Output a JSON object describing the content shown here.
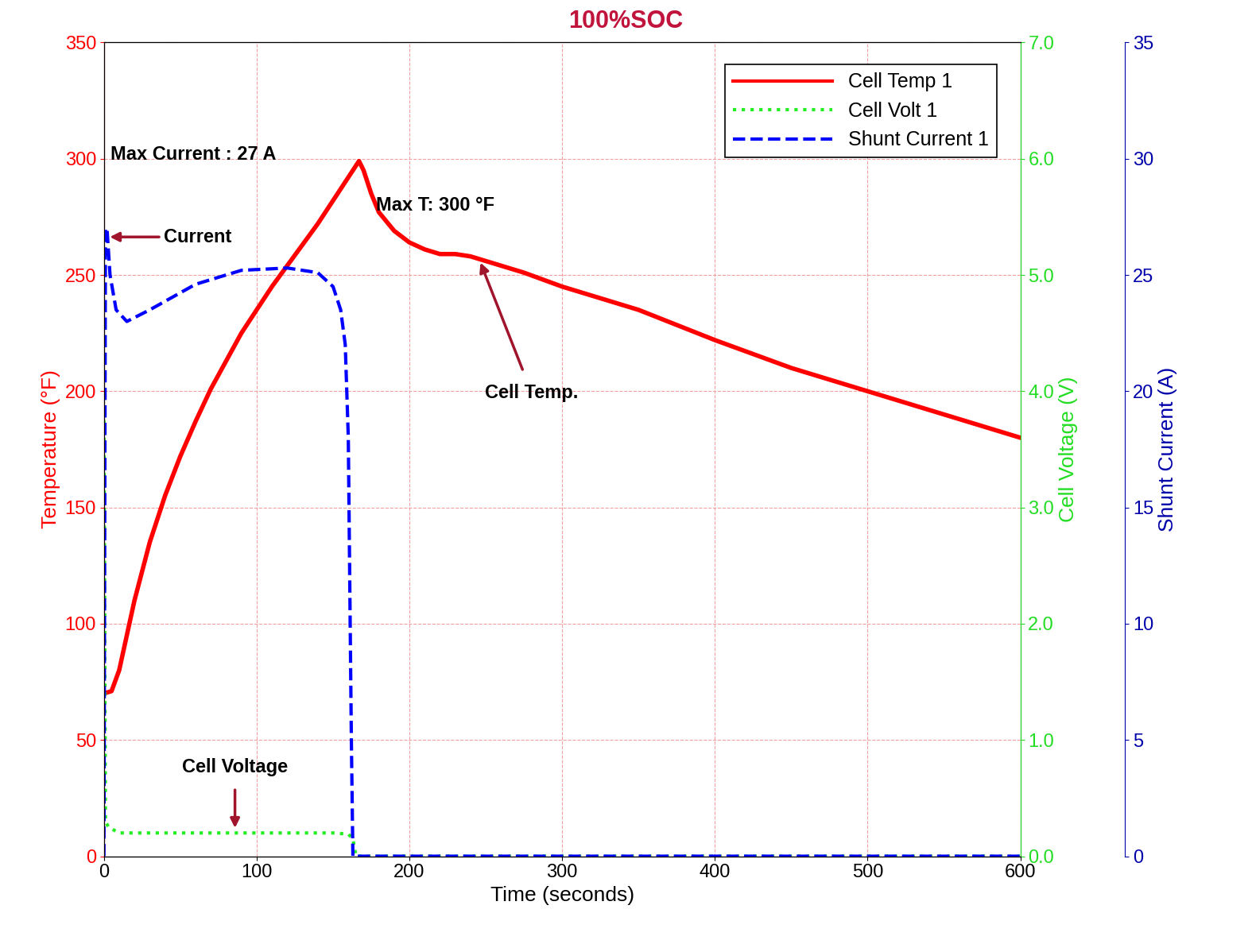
{
  "chart_data": {
    "type": "line",
    "title": "100%SOC",
    "x_label": "Time (seconds)",
    "y_label": "Temperature (°F)",
    "y2_label": "Cell Voltage (V)",
    "y3_label": "Shunt Current (A)",
    "xlim": [
      0,
      600
    ],
    "xticks": [
      0,
      100,
      200,
      300,
      400,
      500,
      600
    ],
    "ylim": [
      0,
      350
    ],
    "yticks": [
      0,
      50,
      100,
      150,
      200,
      250,
      300,
      350
    ],
    "y2lim": [
      0,
      7
    ],
    "y2ticks": [
      {
        "value": 0,
        "label": "0.0"
      },
      {
        "value": 1,
        "label": "1.0"
      },
      {
        "value": 2,
        "label": "2.0"
      },
      {
        "value": 3,
        "label": "3.0"
      },
      {
        "value": 4,
        "label": "4.0"
      },
      {
        "value": 5,
        "label": "5.0"
      },
      {
        "value": 6,
        "label": "6.0"
      },
      {
        "value": 7,
        "label": "7.0"
      }
    ],
    "y3lim": [
      0,
      35
    ],
    "y3ticks": [
      0,
      5,
      10,
      15,
      20,
      25,
      30,
      35
    ],
    "grid": true,
    "legend": "upper right",
    "annotations": [
      "Max Current : 27 A",
      "Current",
      "Max T: 300 °F",
      "Cell Temp.",
      "Cell Voltage"
    ],
    "series": [
      {
        "name": "Cell Temp 1",
        "color": "#ff0000",
        "line_style": "solid",
        "axis": "y",
        "x": [
          0,
          5,
          10,
          20,
          30,
          40,
          50,
          60,
          70,
          80,
          90,
          100,
          110,
          120,
          130,
          140,
          150,
          160,
          167,
          170,
          175,
          180,
          190,
          200,
          210,
          220,
          230,
          240,
          250,
          275,
          300,
          350,
          400,
          450,
          500,
          550,
          600
        ],
        "values": [
          70,
          71,
          80,
          110,
          135,
          155,
          172,
          187,
          201,
          213,
          225,
          235,
          245,
          254,
          263,
          272,
          282,
          292,
          299,
          295,
          285,
          277,
          269,
          264,
          261,
          259,
          259,
          258,
          256,
          251,
          245,
          235,
          222,
          210,
          200,
          190,
          180
        ]
      },
      {
        "name": "Cell Volt 1",
        "color": "#22ee22",
        "line_style": "dotted",
        "axis": "y2",
        "x": [
          0,
          1,
          3,
          10,
          50,
          100,
          150,
          160,
          163,
          165,
          170,
          600
        ],
        "values": [
          3.75,
          0.3,
          0.25,
          0.2,
          0.2,
          0.2,
          0.2,
          0.19,
          0.15,
          0,
          0,
          0
        ]
      },
      {
        "name": "Shunt Current 1",
        "color": "#0000ff",
        "line_style": "dashed",
        "axis": "y3",
        "x": [
          0,
          1,
          2,
          4,
          8,
          15,
          30,
          60,
          90,
          120,
          140,
          150,
          155,
          158,
          160,
          162,
          163,
          200,
          600
        ],
        "values": [
          0,
          27,
          27,
          25,
          23.5,
          23,
          23.5,
          24.6,
          25.2,
          25.3,
          25.1,
          24.5,
          23.5,
          22,
          18,
          5,
          0,
          0,
          0
        ]
      }
    ]
  }
}
